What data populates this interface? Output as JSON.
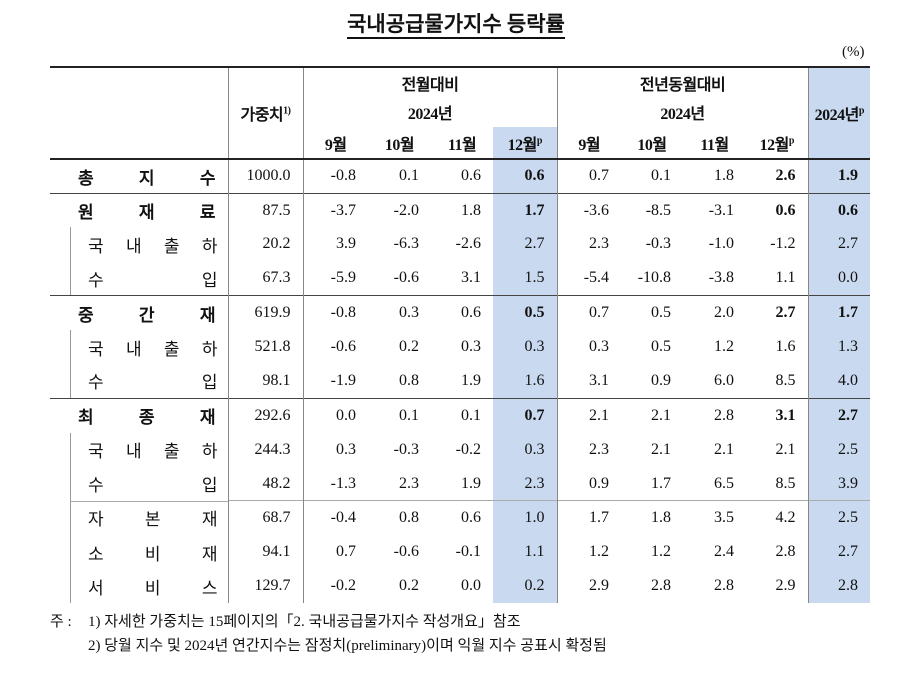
{
  "title": "국내공급물가지수 등락률",
  "unit": "(%)",
  "header": {
    "weight": "가중치",
    "weight_note": "1)",
    "mom": "전월대비",
    "yoy": "전년동월대비",
    "mom_year": "2024년",
    "yoy_year": "2024년",
    "annual": "2024년",
    "annual_note": "p",
    "mom_months": [
      "9월",
      "10월",
      "11월",
      "12월"
    ],
    "mom_last_note": "p",
    "yoy_months": [
      "9월",
      "10월",
      "11월",
      "12월"
    ],
    "yoy_last_note": "p"
  },
  "sections": [
    {
      "head": {
        "label": "총 지 수",
        "values": [
          "1000.0",
          "-0.8",
          "0.1",
          "0.6",
          "0.6",
          "0.7",
          "0.1",
          "1.8",
          "2.6",
          "1.9"
        ]
      },
      "subs": []
    },
    {
      "head": {
        "label": "원 재 료",
        "values": [
          "87.5",
          "-3.7",
          "-2.0",
          "1.8",
          "1.7",
          "-3.6",
          "-8.5",
          "-3.1",
          "0.6",
          "0.6"
        ]
      },
      "subs": [
        [
          {
            "label": "국 내 출 하",
            "values": [
              "20.2",
              "3.9",
              "-6.3",
              "-2.6",
              "2.7",
              "2.3",
              "-0.3",
              "-1.0",
              "-1.2",
              "2.7"
            ]
          },
          {
            "label": "수 입",
            "values": [
              "67.3",
              "-5.9",
              "-0.6",
              "3.1",
              "1.5",
              "-5.4",
              "-10.8",
              "-3.8",
              "1.1",
              "0.0"
            ]
          }
        ]
      ]
    },
    {
      "head": {
        "label": "중 간 재",
        "values": [
          "619.9",
          "-0.8",
          "0.3",
          "0.6",
          "0.5",
          "0.7",
          "0.5",
          "2.0",
          "2.7",
          "1.7"
        ]
      },
      "subs": [
        [
          {
            "label": "국 내 출 하",
            "values": [
              "521.8",
              "-0.6",
              "0.2",
              "0.3",
              "0.3",
              "0.3",
              "0.5",
              "1.2",
              "1.6",
              "1.3"
            ]
          },
          {
            "label": "수 입",
            "values": [
              "98.1",
              "-1.9",
              "0.8",
              "1.9",
              "1.6",
              "3.1",
              "0.9",
              "6.0",
              "8.5",
              "4.0"
            ]
          }
        ]
      ]
    },
    {
      "head": {
        "label": "최 종 재",
        "values": [
          "292.6",
          "0.0",
          "0.1",
          "0.1",
          "0.7",
          "2.1",
          "2.1",
          "2.8",
          "3.1",
          "2.7"
        ]
      },
      "subs": [
        [
          {
            "label": "국 내 출 하",
            "values": [
              "244.3",
              "0.3",
              "-0.3",
              "-0.2",
              "0.3",
              "2.3",
              "2.1",
              "2.1",
              "2.1",
              "2.5"
            ]
          },
          {
            "label": "수 입",
            "values": [
              "48.2",
              "-1.3",
              "2.3",
              "1.9",
              "2.3",
              "0.9",
              "1.7",
              "6.5",
              "8.5",
              "3.9"
            ]
          }
        ],
        [
          {
            "label": "자 본 재",
            "values": [
              "68.7",
              "-0.4",
              "0.8",
              "0.6",
              "1.0",
              "1.7",
              "1.8",
              "3.5",
              "4.2",
              "2.5"
            ]
          },
          {
            "label": "소 비 재",
            "values": [
              "94.1",
              "0.7",
              "-0.6",
              "-0.1",
              "1.1",
              "1.2",
              "1.2",
              "2.4",
              "2.8",
              "2.7"
            ]
          },
          {
            "label": "서 비 스",
            "values": [
              "129.7",
              "-0.2",
              "0.2",
              "0.0",
              "0.2",
              "2.9",
              "2.8",
              "2.8",
              "2.9",
              "2.8"
            ]
          }
        ]
      ]
    }
  ],
  "notes": {
    "lead": "주 :",
    "items": [
      "1) 자세한 가중치는 15페이지의「2. 국내공급물가지수 작성개요」참조",
      "2) 당월 지수 및 2024년 연간지수는 잠정치(preliminary)이며 익월 지수 공표시 확정됨"
    ]
  }
}
